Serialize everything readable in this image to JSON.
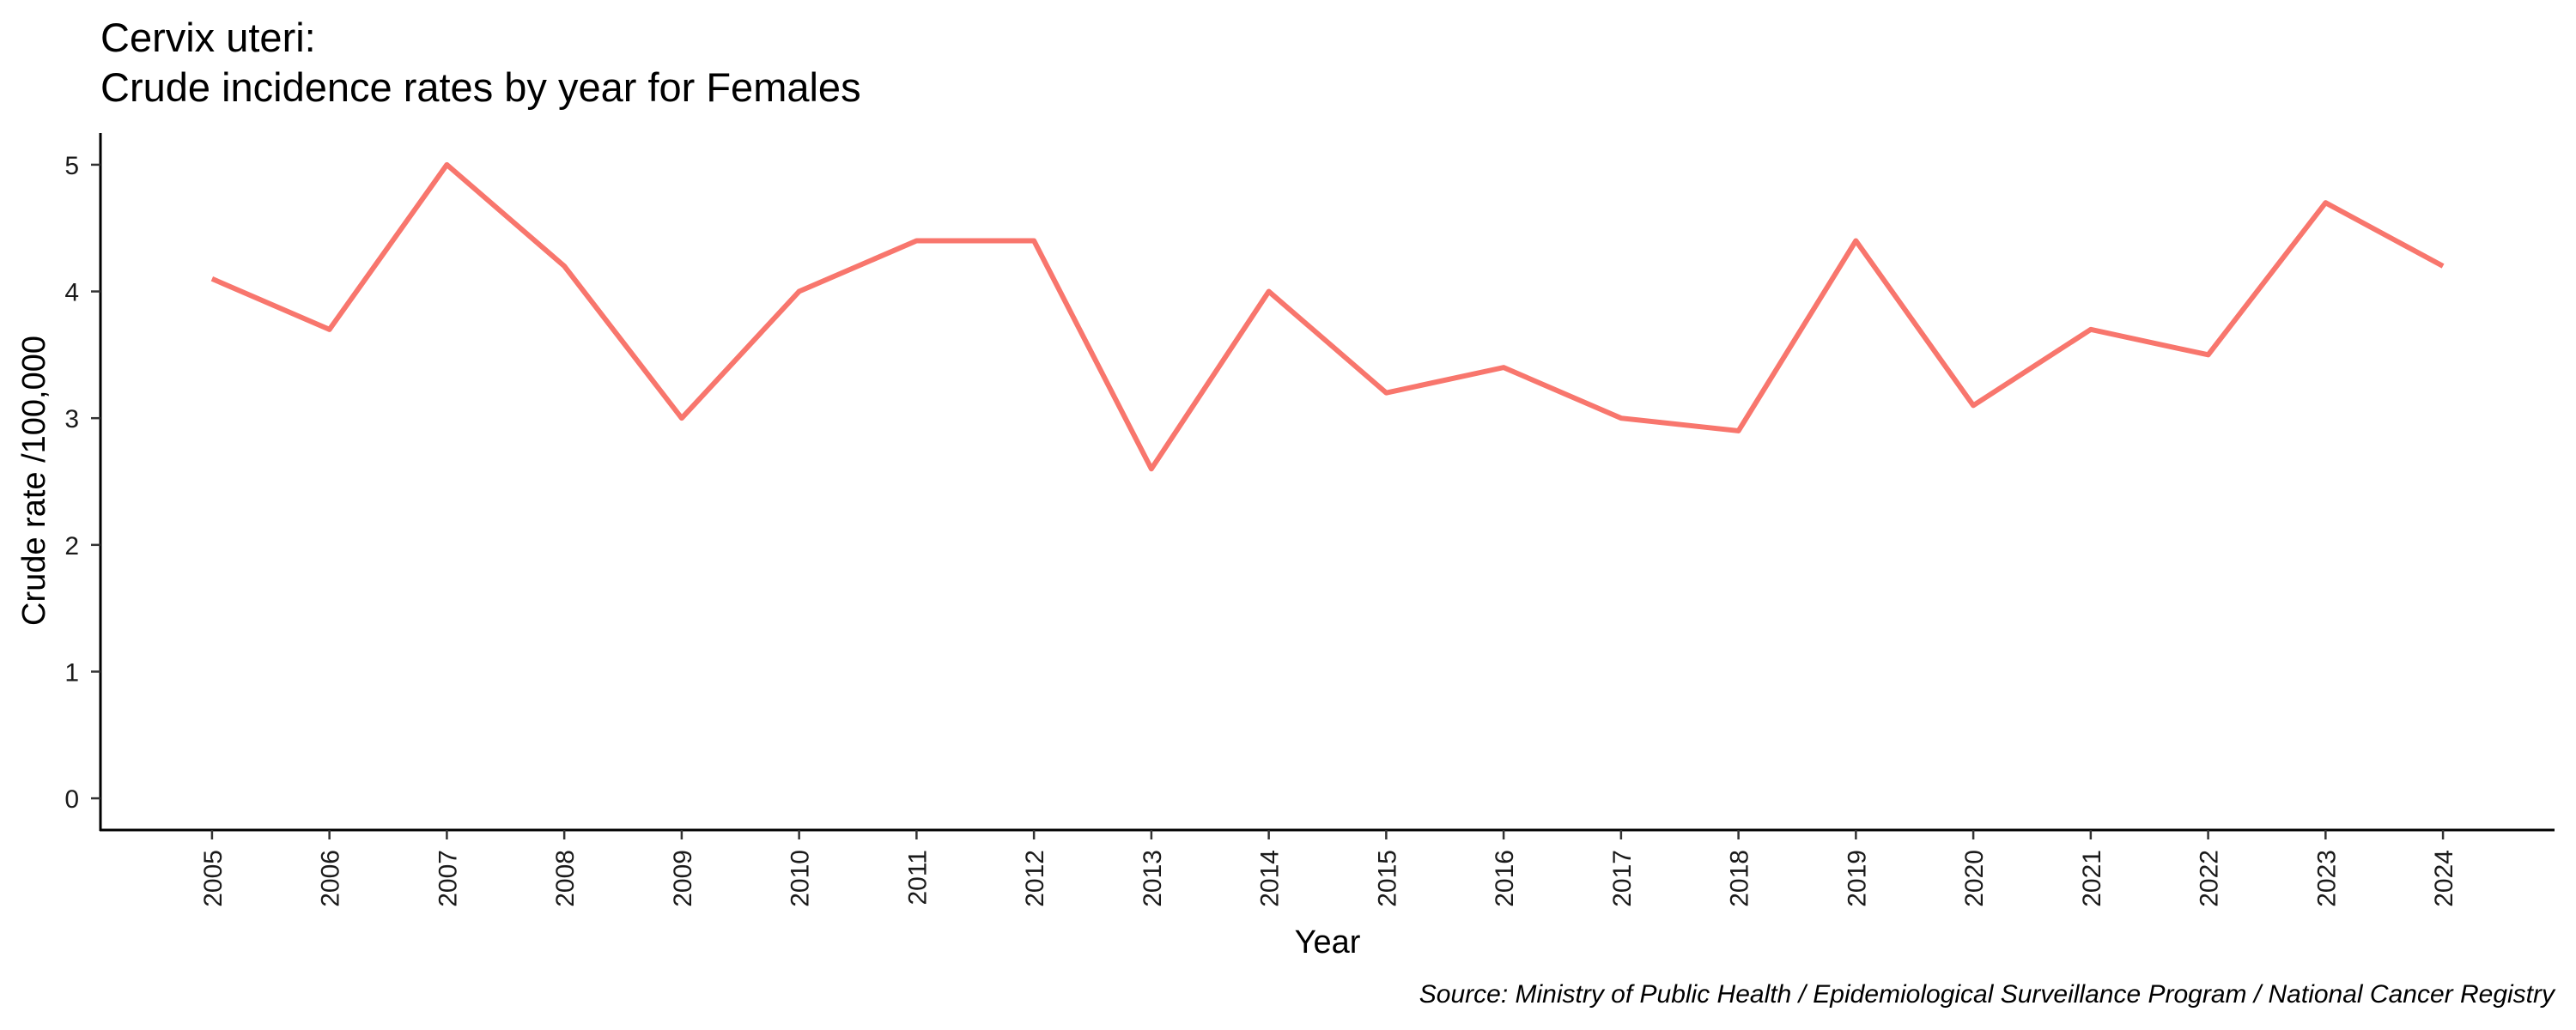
{
  "chart_data": {
    "type": "line",
    "title": "Cervix uteri:",
    "subtitle": "Crude incidence rates by year for Females",
    "x_label": "Year",
    "y_label": "Crude rate /100,000",
    "caption": "Source: Ministry of Public Health / Epidemiological Surveillance Program / National Cancer Registry",
    "categories": [
      "2005",
      "2006",
      "2007",
      "2008",
      "2009",
      "2010",
      "2011",
      "2012",
      "2013",
      "2014",
      "2015",
      "2016",
      "2017",
      "2018",
      "2019",
      "2020",
      "2021",
      "2022",
      "2023",
      "2024"
    ],
    "values": [
      4.1,
      3.7,
      5.0,
      4.2,
      3.0,
      4.0,
      4.4,
      4.4,
      2.6,
      4.0,
      3.2,
      3.4,
      3.0,
      2.9,
      4.4,
      3.1,
      3.7,
      3.5,
      4.7,
      4.2
    ],
    "color": "#F8766D",
    "ylim": [
      -0.25,
      5.25
    ],
    "yticks": [
      0,
      1,
      2,
      3,
      4,
      5
    ],
    "grid": false
  }
}
